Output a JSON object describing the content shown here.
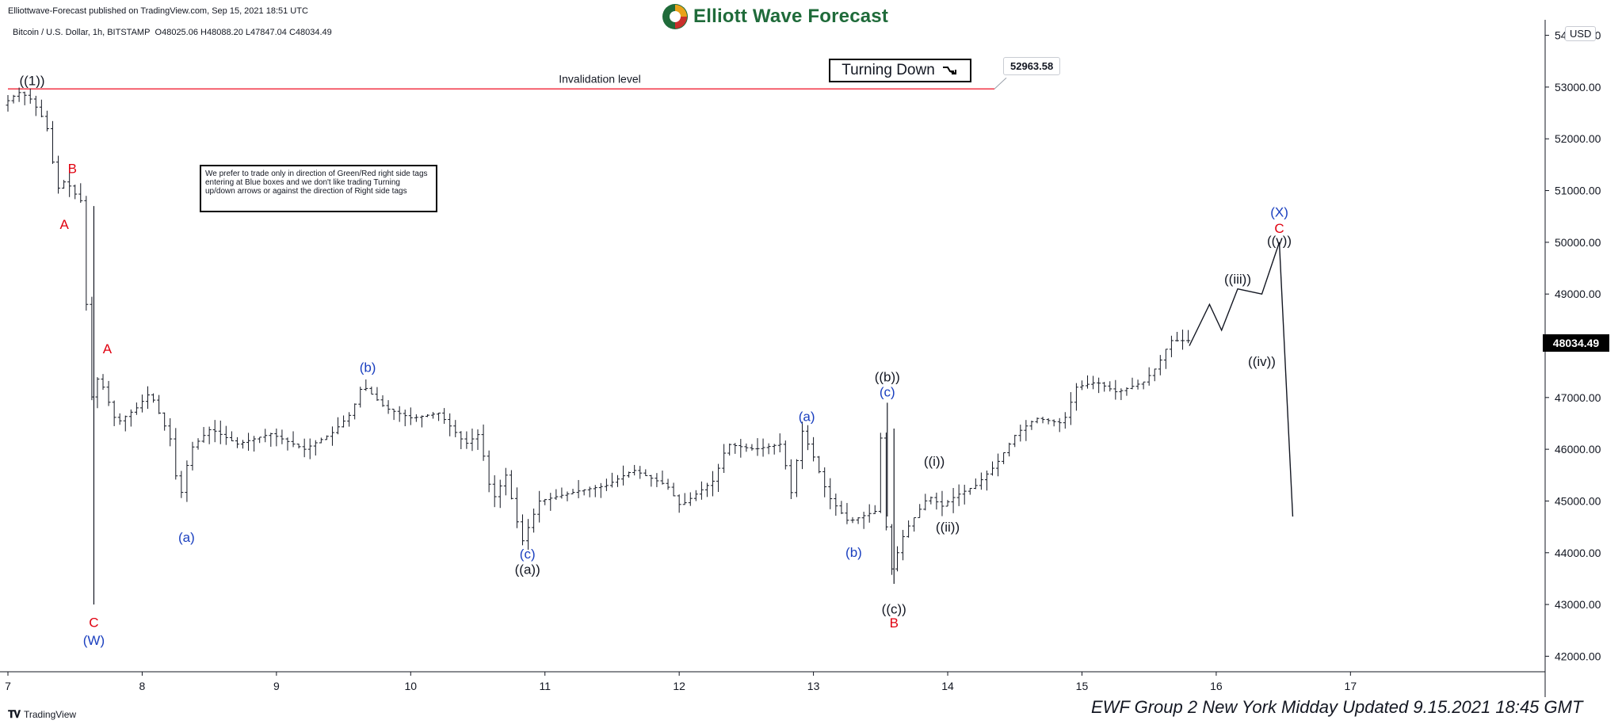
{
  "header": {
    "published": "Elliottwave-Forecast published on TradingView.com, Sep 15, 2021 18:51 UTC",
    "symbol": "Bitcoin / U.S. Dollar, 1h, BITSTAMP",
    "ohlc": "O48025.06 H48088.20 L47847.04 C48034.49",
    "brand": "Elliott Wave Forecast",
    "currency": "USD"
  },
  "annotations": {
    "invalidation_label": "Invalidation level",
    "invalidation_price": "52963.58",
    "turning": "Turning Down",
    "disclaimer": "We prefer to trade only in direction of Green/Red right side tags entering at Blue boxes and we don't like trading Turning up/down arrows or against the direction of Right side tags",
    "last_price": "48034.49",
    "update_note": "EWF Group 2 New York Midday Updated 9.15.2021 18:45 GMT"
  },
  "footer": {
    "tv_logo": "TradingView"
  },
  "colors": {
    "black": "#131722",
    "red": "#e0000f",
    "blue": "#1a3fbf",
    "invalidation_line": "#f23645",
    "bar": "#131722"
  },
  "chart_data": {
    "type": "line",
    "symbol": "BTCUSD",
    "timeframe": "1h",
    "price_axis": {
      "range": [
        41700,
        54300
      ],
      "ticks": [
        "54000.00",
        "53000.00",
        "52000.00",
        "51000.00",
        "50000.00",
        "49000.00",
        "48000.00",
        "47000.00",
        "46000.00",
        "45000.00",
        "44000.00",
        "43000.00",
        "42000.00"
      ],
      "tick_values": [
        54000,
        53000,
        52000,
        51000,
        50000,
        49000,
        48000,
        47000,
        46000,
        45000,
        44000,
        43000,
        42000
      ]
    },
    "time_axis": {
      "range": [
        7,
        18.45
      ],
      "ticks": [
        "7",
        "8",
        "9",
        "10",
        "11",
        "12",
        "13",
        "14",
        "15",
        "16",
        "17"
      ],
      "tick_values": [
        7,
        8,
        9,
        10,
        11,
        12,
        13,
        14,
        15,
        16,
        17
      ]
    },
    "invalidation_level": 52963.58,
    "price_path": [
      [
        7.0,
        52650
      ],
      [
        7.12,
        52900
      ],
      [
        7.2,
        52800
      ],
      [
        7.28,
        52500
      ],
      [
        7.35,
        52100
      ],
      [
        7.4,
        51000
      ],
      [
        7.47,
        51200
      ],
      [
        7.55,
        50900
      ],
      [
        7.62,
        50700
      ],
      [
        7.64,
        43100
      ],
      [
        7.67,
        47500
      ],
      [
        7.75,
        47200
      ],
      [
        7.85,
        46500
      ],
      [
        8.0,
        46800
      ],
      [
        8.1,
        47100
      ],
      [
        8.25,
        46200
      ],
      [
        8.32,
        45000
      ],
      [
        8.4,
        46000
      ],
      [
        8.55,
        46400
      ],
      [
        8.75,
        46100
      ],
      [
        9.0,
        46300
      ],
      [
        9.25,
        46000
      ],
      [
        9.45,
        46300
      ],
      [
        9.6,
        46700
      ],
      [
        9.68,
        47250
      ],
      [
        9.85,
        46800
      ],
      [
        10.05,
        46600
      ],
      [
        10.25,
        46700
      ],
      [
        10.45,
        46100
      ],
      [
        10.55,
        46300
      ],
      [
        10.65,
        45000
      ],
      [
        10.75,
        45500
      ],
      [
        10.87,
        44200
      ],
      [
        11.0,
        45000
      ],
      [
        11.3,
        45200
      ],
      [
        11.5,
        45300
      ],
      [
        11.7,
        45600
      ],
      [
        11.95,
        45300
      ],
      [
        12.05,
        44900
      ],
      [
        12.3,
        45400
      ],
      [
        12.4,
        46100
      ],
      [
        12.6,
        46000
      ],
      [
        12.8,
        46100
      ],
      [
        12.88,
        45100
      ],
      [
        12.95,
        46400
      ],
      [
        13.05,
        45800
      ],
      [
        13.15,
        45100
      ],
      [
        13.3,
        44600
      ],
      [
        13.5,
        44800
      ],
      [
        13.55,
        46500
      ],
      [
        13.6,
        43500
      ],
      [
        13.72,
        44400
      ],
      [
        13.9,
        45100
      ],
      [
        14.0,
        44900
      ],
      [
        14.1,
        45100
      ],
      [
        14.25,
        45300
      ],
      [
        14.4,
        45700
      ],
      [
        14.55,
        46300
      ],
      [
        14.7,
        46600
      ],
      [
        14.9,
        46500
      ],
      [
        15.0,
        47200
      ],
      [
        15.15,
        47300
      ],
      [
        15.3,
        47100
      ],
      [
        15.5,
        47300
      ],
      [
        15.6,
        47600
      ],
      [
        15.7,
        48100
      ],
      [
        15.8,
        48100
      ]
    ],
    "projection_path": [
      [
        15.8,
        48000
      ],
      [
        15.95,
        48800
      ],
      [
        16.04,
        48300
      ],
      [
        16.16,
        49100
      ],
      [
        16.34,
        49000
      ],
      [
        16.47,
        50000
      ],
      [
        16.57,
        44700
      ]
    ],
    "wave_labels": [
      {
        "text": "((1))",
        "t": 7.18,
        "p": 53130,
        "color": "black"
      },
      {
        "text": "B",
        "t": 7.48,
        "p": 51430,
        "color": "red"
      },
      {
        "text": "A",
        "t": 7.42,
        "p": 50350,
        "color": "red"
      },
      {
        "text": "A",
        "t": 7.74,
        "p": 47950,
        "color": "red"
      },
      {
        "text": "C",
        "t": 7.64,
        "p": 42660,
        "color": "red"
      },
      {
        "text": "(W)",
        "t": 7.64,
        "p": 42310,
        "color": "blue"
      },
      {
        "text": "(a)",
        "t": 8.33,
        "p": 44300,
        "color": "blue"
      },
      {
        "text": "(b)",
        "t": 9.68,
        "p": 47590,
        "color": "blue"
      },
      {
        "text": "(c)",
        "t": 10.87,
        "p": 43980,
        "color": "blue"
      },
      {
        "text": "((a))",
        "t": 10.87,
        "p": 43680,
        "color": "black"
      },
      {
        "text": "(a)",
        "t": 12.95,
        "p": 46640,
        "color": "blue"
      },
      {
        "text": "(b)",
        "t": 13.3,
        "p": 44010,
        "color": "blue"
      },
      {
        "text": "((b))",
        "t": 13.55,
        "p": 47400,
        "color": "black"
      },
      {
        "text": "(c)",
        "t": 13.55,
        "p": 47110,
        "color": "blue"
      },
      {
        "text": "((c))",
        "t": 13.6,
        "p": 42920,
        "color": "black"
      },
      {
        "text": "B",
        "t": 13.6,
        "p": 42650,
        "color": "red"
      },
      {
        "text": "((i))",
        "t": 13.9,
        "p": 45770,
        "color": "black"
      },
      {
        "text": "((ii))",
        "t": 14.0,
        "p": 44500,
        "color": "black"
      },
      {
        "text": "((iii))",
        "t": 16.16,
        "p": 49290,
        "color": "black"
      },
      {
        "text": "((iv))",
        "t": 16.34,
        "p": 47700,
        "color": "black"
      },
      {
        "text": "((v))",
        "t": 16.47,
        "p": 50040,
        "color": "black"
      },
      {
        "text": "C",
        "t": 16.47,
        "p": 50270,
        "color": "red"
      },
      {
        "text": "(X)",
        "t": 16.47,
        "p": 50590,
        "color": "blue"
      }
    ]
  }
}
